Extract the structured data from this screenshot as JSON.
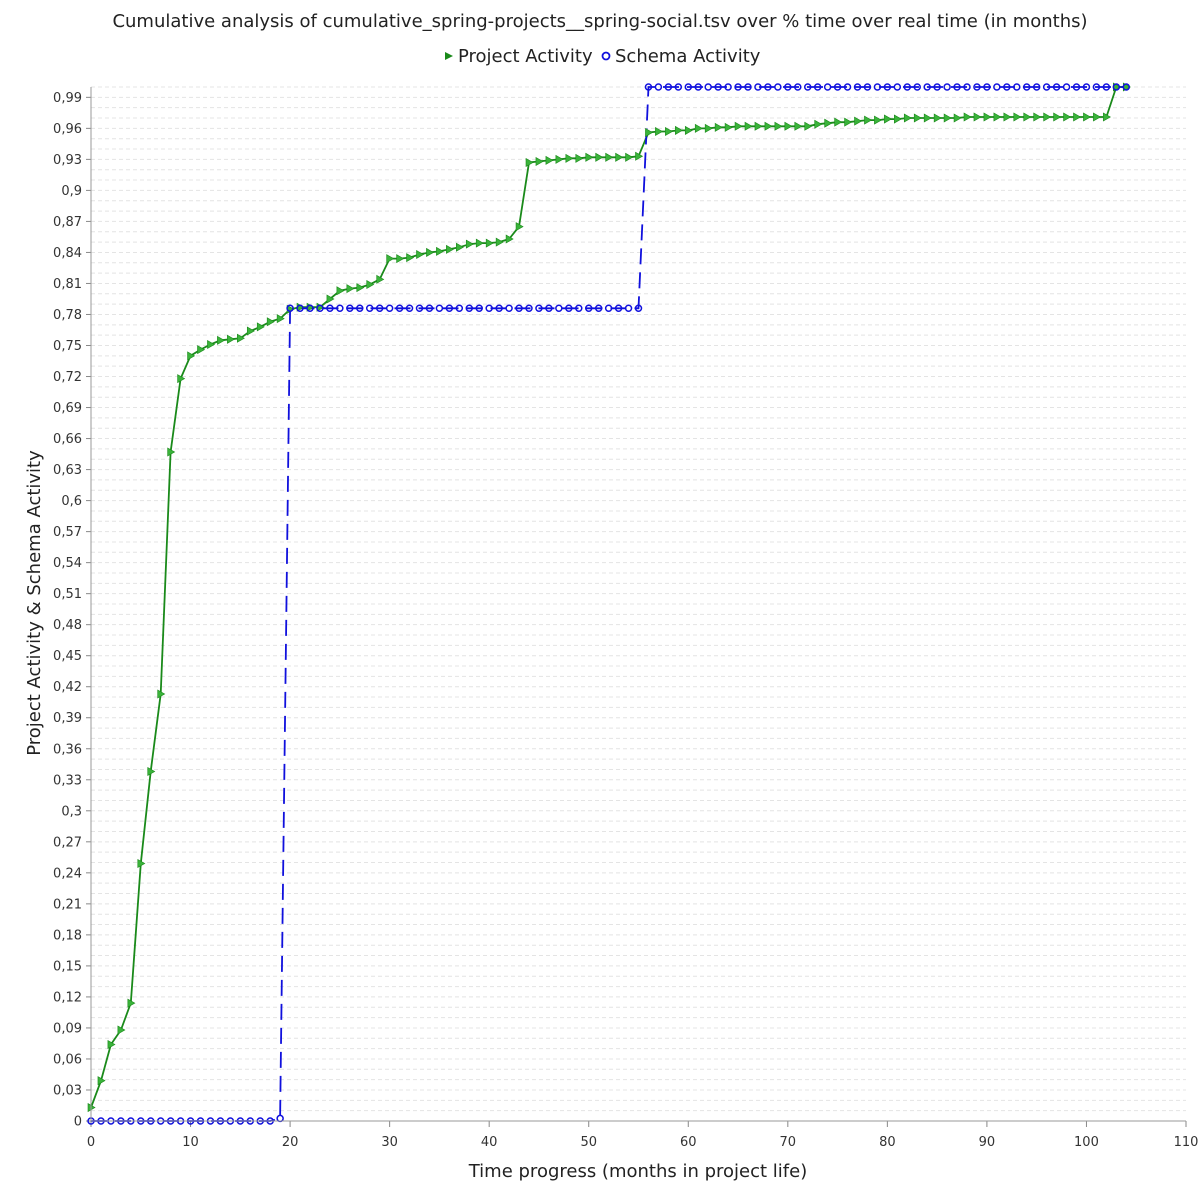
{
  "chart_data": {
    "type": "line",
    "title": "Cumulative analysis of cumulative_spring-projects__spring-social.tsv over % time over real time (in months)",
    "xlabel": "Time progress (months in project life)",
    "ylabel": "Project Activity & Schema Activity",
    "xlim": [
      0,
      110
    ],
    "ylim": [
      0,
      1.0
    ],
    "x_ticks": [
      0,
      10,
      20,
      30,
      40,
      50,
      60,
      70,
      80,
      90,
      100,
      110
    ],
    "x_tick_labels": [
      "0",
      "10",
      "20",
      "30",
      "40",
      "50",
      "60",
      "70",
      "80",
      "90",
      "100",
      "110"
    ],
    "y_ticks": [
      0,
      0.03,
      0.06,
      0.09,
      0.12,
      0.15,
      0.18,
      0.21,
      0.24,
      0.27,
      0.3,
      0.33,
      0.36,
      0.39,
      0.42,
      0.45,
      0.48,
      0.51,
      0.54,
      0.57,
      0.6,
      0.63,
      0.66,
      0.69,
      0.72,
      0.75,
      0.78,
      0.81,
      0.84,
      0.87,
      0.9,
      0.93,
      0.96,
      0.99
    ],
    "y_tick_labels": [
      "0",
      "0,03",
      "0,06",
      "0,09",
      "0,12",
      "0,15",
      "0,18",
      "0,21",
      "0,24",
      "0,27",
      "0,3",
      "0,33",
      "0,36",
      "0,39",
      "0,42",
      "0,45",
      "0,48",
      "0,51",
      "0,54",
      "0,57",
      "0,6",
      "0,63",
      "0,66",
      "0,69",
      "0,72",
      "0,75",
      "0,78",
      "0,81",
      "0,84",
      "0,87",
      "0,9",
      "0,93",
      "0,96",
      "0,99"
    ],
    "grid": true,
    "legend": "top-center",
    "series": [
      {
        "name": "Project Activity",
        "color": "#1a8a1a",
        "marker": "triangle-right",
        "line": "solid",
        "x": [
          0,
          1,
          2,
          3,
          4,
          5,
          6,
          7,
          8,
          9,
          10,
          11,
          12,
          13,
          14,
          15,
          16,
          17,
          18,
          19,
          20,
          21,
          22,
          23,
          24,
          25,
          26,
          27,
          28,
          29,
          30,
          31,
          32,
          33,
          34,
          35,
          36,
          37,
          38,
          39,
          40,
          41,
          42,
          43,
          44,
          45,
          46,
          47,
          48,
          49,
          50,
          51,
          52,
          53,
          54,
          55,
          56,
          57,
          58,
          59,
          60,
          61,
          62,
          63,
          64,
          65,
          66,
          67,
          68,
          69,
          70,
          71,
          72,
          73,
          74,
          75,
          76,
          77,
          78,
          79,
          80,
          81,
          82,
          83,
          84,
          85,
          86,
          87,
          88,
          89,
          90,
          91,
          92,
          93,
          94,
          95,
          96,
          97,
          98,
          99,
          100,
          101,
          102,
          103,
          104
        ],
        "y": [
          0.013,
          0.039,
          0.074,
          0.088,
          0.114,
          0.249,
          0.338,
          0.413,
          0.647,
          0.718,
          0.74,
          0.746,
          0.751,
          0.755,
          0.756,
          0.757,
          0.764,
          0.768,
          0.773,
          0.776,
          0.785,
          0.787,
          0.787,
          0.787,
          0.795,
          0.803,
          0.805,
          0.806,
          0.809,
          0.814,
          0.834,
          0.834,
          0.835,
          0.838,
          0.84,
          0.841,
          0.843,
          0.845,
          0.848,
          0.849,
          0.849,
          0.85,
          0.853,
          0.865,
          0.927,
          0.928,
          0.929,
          0.93,
          0.931,
          0.931,
          0.932,
          0.932,
          0.932,
          0.932,
          0.932,
          0.933,
          0.956,
          0.957,
          0.957,
          0.958,
          0.958,
          0.96,
          0.96,
          0.961,
          0.961,
          0.962,
          0.962,
          0.962,
          0.962,
          0.962,
          0.962,
          0.962,
          0.962,
          0.964,
          0.965,
          0.966,
          0.966,
          0.967,
          0.968,
          0.968,
          0.969,
          0.969,
          0.97,
          0.97,
          0.97,
          0.97,
          0.97,
          0.97,
          0.971,
          0.971,
          0.971,
          0.971,
          0.971,
          0.971,
          0.971,
          0.971,
          0.971,
          0.971,
          0.971,
          0.971,
          0.971,
          0.971,
          0.971,
          1.0,
          1.0
        ]
      },
      {
        "name": "Schema Activity",
        "color": "#1010dd",
        "marker": "circle",
        "line": "dashed",
        "x": [
          0,
          1,
          2,
          3,
          4,
          5,
          6,
          7,
          8,
          9,
          10,
          11,
          12,
          13,
          14,
          15,
          16,
          17,
          18,
          19,
          20,
          21,
          22,
          23,
          24,
          25,
          26,
          27,
          28,
          29,
          30,
          31,
          32,
          33,
          34,
          35,
          36,
          37,
          38,
          39,
          40,
          41,
          42,
          43,
          44,
          45,
          46,
          47,
          48,
          49,
          50,
          51,
          52,
          53,
          54,
          55,
          56,
          57,
          58,
          59,
          60,
          61,
          62,
          63,
          64,
          65,
          66,
          67,
          68,
          69,
          70,
          71,
          72,
          73,
          74,
          75,
          76,
          77,
          78,
          79,
          80,
          81,
          82,
          83,
          84,
          85,
          86,
          87,
          88,
          89,
          90,
          91,
          92,
          93,
          94,
          95,
          96,
          97,
          98,
          99,
          100,
          101,
          102,
          103,
          104
        ],
        "y": [
          0,
          0,
          0,
          0,
          0,
          0,
          0,
          0,
          0,
          0,
          0,
          0,
          0,
          0,
          0,
          0,
          0,
          0,
          0,
          0.0025,
          0.786,
          0.786,
          0.786,
          0.786,
          0.786,
          0.786,
          0.786,
          0.786,
          0.786,
          0.786,
          0.786,
          0.786,
          0.786,
          0.786,
          0.786,
          0.786,
          0.786,
          0.786,
          0.786,
          0.786,
          0.786,
          0.786,
          0.786,
          0.786,
          0.786,
          0.786,
          0.786,
          0.786,
          0.786,
          0.786,
          0.786,
          0.786,
          0.786,
          0.786,
          0.786,
          0.786,
          1.0,
          1.0,
          1.0,
          1.0,
          1.0,
          1.0,
          1.0,
          1.0,
          1.0,
          1.0,
          1.0,
          1.0,
          1.0,
          1.0,
          1.0,
          1.0,
          1.0,
          1.0,
          1.0,
          1.0,
          1.0,
          1.0,
          1.0,
          1.0,
          1.0,
          1.0,
          1.0,
          1.0,
          1.0,
          1.0,
          1.0,
          1.0,
          1.0,
          1.0,
          1.0,
          1.0,
          1.0,
          1.0,
          1.0,
          1.0,
          1.0,
          1.0,
          1.0,
          1.0,
          1.0,
          1.0,
          1.0,
          1.0,
          1.0
        ]
      }
    ]
  }
}
